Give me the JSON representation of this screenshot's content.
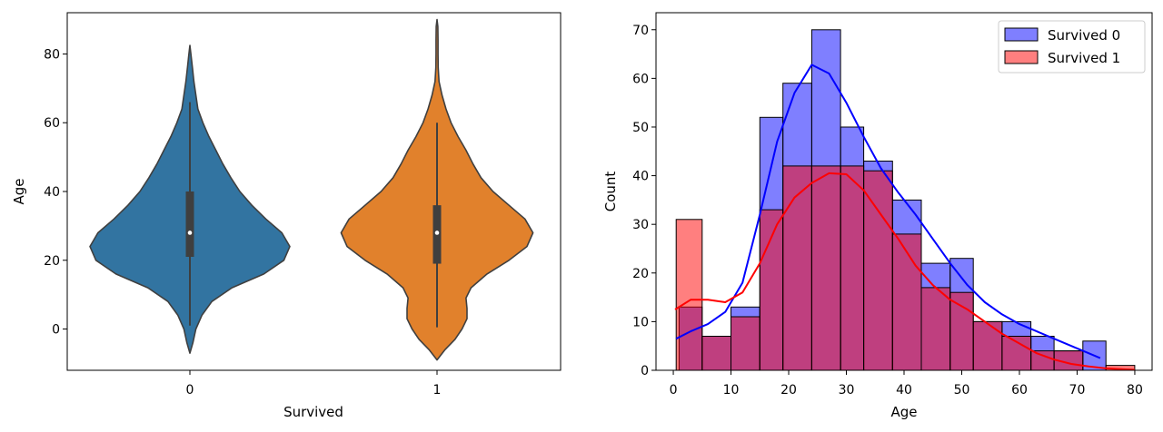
{
  "chart_data": [
    {
      "type": "violin",
      "xlabel": "Survived",
      "ylabel": "Age",
      "categories": [
        "0",
        "1"
      ],
      "colors": [
        "#3274a1",
        "#e1812c"
      ],
      "ylim": [
        -12,
        92
      ],
      "yticks": [
        0,
        20,
        40,
        60,
        80
      ],
      "violins": [
        {
          "category": "0",
          "median": 28,
          "q1": 21,
          "q3": 40,
          "whisker_low": 1,
          "whisker_high": 66,
          "density_profile": [
            [
              -7,
              0.0
            ],
            [
              -4,
              0.03
            ],
            [
              0,
              0.06
            ],
            [
              4,
              0.12
            ],
            [
              8,
              0.22
            ],
            [
              12,
              0.42
            ],
            [
              16,
              0.74
            ],
            [
              20,
              0.94
            ],
            [
              24,
              1.0
            ],
            [
              28,
              0.92
            ],
            [
              32,
              0.76
            ],
            [
              36,
              0.62
            ],
            [
              40,
              0.5
            ],
            [
              44,
              0.41
            ],
            [
              48,
              0.33
            ],
            [
              52,
              0.26
            ],
            [
              56,
              0.19
            ],
            [
              60,
              0.13
            ],
            [
              64,
              0.08
            ],
            [
              68,
              0.06
            ],
            [
              72,
              0.04
            ],
            [
              76,
              0.025
            ],
            [
              80,
              0.01
            ],
            [
              82.5,
              0.0
            ]
          ]
        },
        {
          "category": "1",
          "median": 28,
          "q1": 19,
          "q3": 36,
          "whisker_low": 0.5,
          "whisker_high": 60,
          "density_profile": [
            [
              -9,
              0.0
            ],
            [
              -6,
              0.08
            ],
            [
              -3,
              0.18
            ],
            [
              0,
              0.25
            ],
            [
              3,
              0.3
            ],
            [
              6,
              0.3
            ],
            [
              9,
              0.29
            ],
            [
              12,
              0.34
            ],
            [
              16,
              0.5
            ],
            [
              20,
              0.72
            ],
            [
              24,
              0.9
            ],
            [
              28,
              0.96
            ],
            [
              32,
              0.88
            ],
            [
              36,
              0.72
            ],
            [
              40,
              0.56
            ],
            [
              44,
              0.44
            ],
            [
              48,
              0.36
            ],
            [
              52,
              0.29
            ],
            [
              56,
              0.21
            ],
            [
              60,
              0.14
            ],
            [
              64,
              0.09
            ],
            [
              68,
              0.05
            ],
            [
              72,
              0.02
            ],
            [
              76,
              0.012
            ],
            [
              80,
              0.01
            ],
            [
              84,
              0.01
            ],
            [
              88,
              0.008
            ],
            [
              90,
              0.0
            ]
          ]
        }
      ]
    },
    {
      "type": "histogram",
      "xlabel": "Age",
      "ylabel": "Count",
      "xlim": [
        -3,
        83
      ],
      "ylim": [
        0,
        73.5
      ],
      "xticks": [
        0,
        10,
        20,
        30,
        40,
        50,
        60,
        70,
        80
      ],
      "yticks": [
        0,
        10,
        20,
        30,
        40,
        50,
        60,
        70
      ],
      "legend_position": "top-right",
      "series": [
        {
          "name": "Survived 0",
          "color": "#0000ff",
          "bins": [
            [
              1,
              5,
              13
            ],
            [
              5,
              10,
              7
            ],
            [
              10,
              15,
              13
            ],
            [
              15,
              19,
              52
            ],
            [
              19,
              24,
              59
            ],
            [
              24,
              29,
              70
            ],
            [
              29,
              33,
              50
            ],
            [
              33,
              38,
              43
            ],
            [
              38,
              43,
              35
            ],
            [
              43,
              48,
              22
            ],
            [
              48,
              52,
              23
            ],
            [
              52,
              57,
              10
            ],
            [
              57,
              62,
              10
            ],
            [
              62,
              66,
              7
            ],
            [
              66,
              71,
              4
            ],
            [
              71,
              75,
              6
            ]
          ],
          "kde": [
            [
              0.5,
              6.5
            ],
            [
              3,
              8
            ],
            [
              6,
              9.5
            ],
            [
              9,
              12
            ],
            [
              12,
              18
            ],
            [
              15,
              32
            ],
            [
              18,
              47
            ],
            [
              21,
              57
            ],
            [
              24,
              62.8
            ],
            [
              27,
              61
            ],
            [
              30,
              55
            ],
            [
              33,
              48
            ],
            [
              36,
              41.5
            ],
            [
              39,
              36.5
            ],
            [
              42,
              32
            ],
            [
              45,
              27
            ],
            [
              48,
              22
            ],
            [
              51,
              17.5
            ],
            [
              54,
              14
            ],
            [
              57,
              11.5
            ],
            [
              60,
              9.5
            ],
            [
              63,
              8
            ],
            [
              66,
              6.5
            ],
            [
              69,
              5
            ],
            [
              72,
              3.5
            ],
            [
              74,
              2.5
            ]
          ]
        },
        {
          "name": "Survived 1",
          "color": "#ff0000",
          "bins": [
            [
              0.5,
              5,
              31
            ],
            [
              5,
              10,
              7
            ],
            [
              10,
              15,
              11
            ],
            [
              15,
              19,
              33
            ],
            [
              19,
              24,
              42
            ],
            [
              24,
              29,
              42
            ],
            [
              29,
              33,
              42
            ],
            [
              33,
              38,
              41
            ],
            [
              38,
              43,
              28
            ],
            [
              43,
              48,
              17
            ],
            [
              48,
              52,
              16
            ],
            [
              52,
              57,
              10
            ],
            [
              57,
              62,
              7
            ],
            [
              62,
              66,
              4
            ],
            [
              66,
              71,
              4
            ],
            [
              71,
              75,
              0
            ],
            [
              75,
              80,
              1
            ]
          ],
          "kde": [
            [
              0.3,
              12.5
            ],
            [
              3,
              14.5
            ],
            [
              6,
              14.5
            ],
            [
              9,
              14
            ],
            [
              12,
              16
            ],
            [
              15,
              22
            ],
            [
              18,
              30
            ],
            [
              21,
              35.5
            ],
            [
              24,
              38.5
            ],
            [
              27,
              40.5
            ],
            [
              30,
              40.3
            ],
            [
              33,
              37
            ],
            [
              36,
              32
            ],
            [
              39,
              27
            ],
            [
              42,
              21.5
            ],
            [
              45,
              17.5
            ],
            [
              48,
              14.5
            ],
            [
              51,
              12.5
            ],
            [
              54,
              10
            ],
            [
              57,
              7.5
            ],
            [
              60,
              5.5
            ],
            [
              63,
              3.5
            ],
            [
              66,
              2.2
            ],
            [
              69,
              1.3
            ],
            [
              72,
              0.8
            ],
            [
              75,
              0.4
            ],
            [
              78,
              0.2
            ],
            [
              80,
              0.1
            ]
          ]
        }
      ]
    }
  ]
}
